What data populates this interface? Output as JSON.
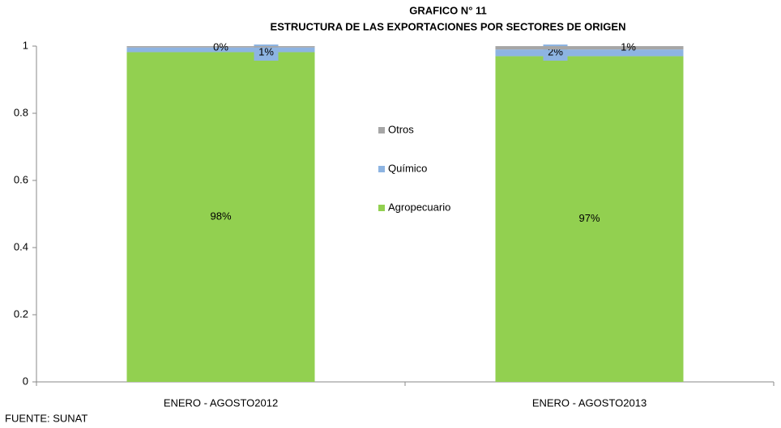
{
  "chart_data": {
    "type": "stacked_bar",
    "title": "GRAFICO N° 11",
    "subtitle": "ESTRUCTURA DE LAS EXPORTACIONES POR SECTORES DE ORIGEN",
    "categories": [
      "ENERO - AGOSTO2012",
      "ENERO - AGOSTO2013"
    ],
    "series": [
      {
        "name": "Agropecuario",
        "color": "#92d050",
        "values": [
          0.982,
          0.97
        ],
        "value_labels": [
          "98%",
          "97%"
        ]
      },
      {
        "name": "Químico",
        "color": "#8db4e2",
        "values": [
          0.014,
          0.02
        ],
        "value_labels": [
          "1%",
          "2%"
        ]
      },
      {
        "name": "Otros",
        "color": "#a6a6a6",
        "values": [
          0.004,
          0.01
        ],
        "value_labels": [
          "0%",
          "1%"
        ]
      }
    ],
    "ylim": [
      0,
      1
    ],
    "yticks": [
      0,
      0.2,
      0.4,
      0.6,
      0.8,
      1
    ],
    "grid": false,
    "legend": "center",
    "source": "FUENTE: SUNAT"
  }
}
